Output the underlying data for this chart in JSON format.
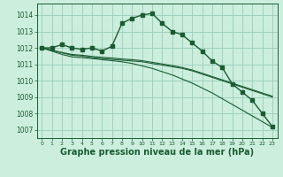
{
  "background_color": "#cceedd",
  "grid_color": "#99ccbb",
  "line_color": "#1a5c32",
  "xlabel": "Graphe pression niveau de la mer (hPa)",
  "xlabel_fontsize": 7,
  "ylim": [
    1006.5,
    1014.7
  ],
  "xlim": [
    -0.5,
    23.5
  ],
  "yticks": [
    1007,
    1008,
    1009,
    1010,
    1011,
    1012,
    1013,
    1014
  ],
  "xticks": [
    0,
    1,
    2,
    3,
    4,
    5,
    6,
    7,
    8,
    9,
    10,
    11,
    12,
    13,
    14,
    15,
    16,
    17,
    18,
    19,
    20,
    21,
    22,
    23
  ],
  "series_with_markers": [
    1012.0,
    1012.0,
    1012.2,
    1012.0,
    1011.9,
    1012.0,
    1011.8,
    1012.1,
    1013.5,
    1013.8,
    1014.0,
    1014.1,
    1013.5,
    1013.0,
    1012.8,
    1012.3,
    1011.8,
    1011.2,
    1010.8,
    1009.8,
    1009.3,
    1008.8,
    1008.0,
    1007.2
  ],
  "series_flat1": [
    1012.0,
    1011.85,
    1011.7,
    1011.55,
    1011.5,
    1011.4,
    1011.35,
    1011.3,
    1011.25,
    1011.2,
    1011.15,
    1011.05,
    1010.95,
    1010.85,
    1010.75,
    1010.6,
    1010.4,
    1010.2,
    1010.0,
    1009.8,
    1009.6,
    1009.4,
    1009.2,
    1009.0
  ],
  "series_flat2": [
    1012.0,
    1011.85,
    1011.72,
    1011.6,
    1011.55,
    1011.48,
    1011.42,
    1011.38,
    1011.32,
    1011.28,
    1011.22,
    1011.12,
    1011.02,
    1010.92,
    1010.8,
    1010.65,
    1010.45,
    1010.25,
    1010.05,
    1009.85,
    1009.65,
    1009.45,
    1009.25,
    1009.05
  ],
  "series_steep": [
    1012.0,
    1011.8,
    1011.6,
    1011.45,
    1011.4,
    1011.35,
    1011.28,
    1011.22,
    1011.15,
    1011.05,
    1010.9,
    1010.75,
    1010.55,
    1010.35,
    1010.1,
    1009.85,
    1009.55,
    1009.25,
    1008.9,
    1008.55,
    1008.2,
    1007.85,
    1007.5,
    1007.15
  ]
}
